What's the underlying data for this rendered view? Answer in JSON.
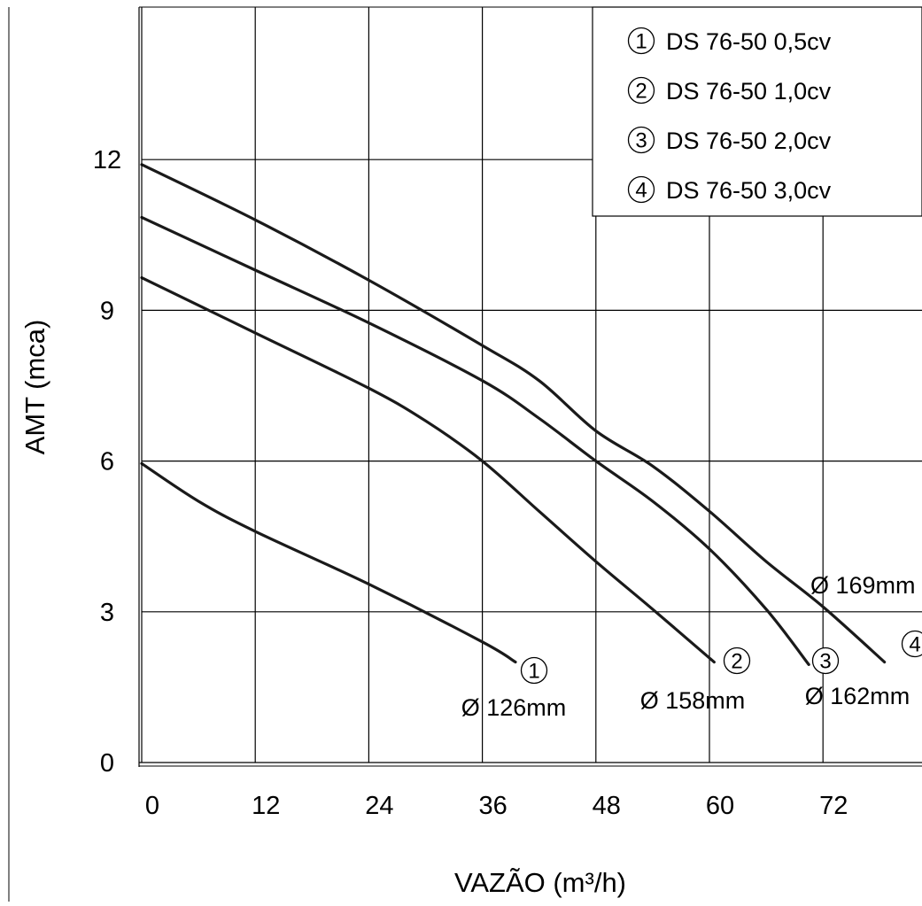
{
  "chart_data": {
    "type": "line",
    "title": "",
    "xlabel": "VAZÃO (m³/h)",
    "ylabel": "AMT (mca)",
    "x_ticks": [
      "0",
      "12",
      "24",
      "36",
      "48",
      "60",
      "72"
    ],
    "y_ticks": [
      "0",
      "3",
      "6",
      "9",
      "12"
    ],
    "xlim": [
      0,
      82
    ],
    "ylim": [
      0,
      15
    ],
    "grid": true,
    "legend_placement": "top-right",
    "legend": [
      {
        "marker": "1",
        "label": "DS 76-50 0,5cv"
      },
      {
        "marker": "2",
        "label": "DS 76-50 1,0cv"
      },
      {
        "marker": "3",
        "label": "DS 76-50 2,0cv"
      },
      {
        "marker": "4",
        "label": "DS 76-50 3,0cv"
      }
    ],
    "series": [
      {
        "name": "DS 76-50 0,5cv",
        "marker": "1",
        "diameter_label": "Ø 126mm",
        "x": [
          0,
          6,
          12,
          24,
          36,
          39.5
        ],
        "y": [
          5.95,
          5.2,
          4.6,
          3.55,
          2.4,
          2.0
        ]
      },
      {
        "name": "DS 76-50 1,0cv",
        "marker": "2",
        "diameter_label": "Ø 158mm",
        "x": [
          0,
          12,
          24,
          30,
          36,
          42,
          48,
          54,
          60.5
        ],
        "y": [
          9.65,
          8.55,
          7.45,
          6.8,
          6.0,
          5.0,
          4.0,
          3.05,
          2.0
        ]
      },
      {
        "name": "DS 76-50 2,0cv",
        "marker": "3",
        "diameter_label": "Ø 162mm",
        "x": [
          0,
          12,
          24,
          36,
          42,
          48,
          54,
          60,
          66,
          70.5
        ],
        "y": [
          10.85,
          9.8,
          8.75,
          7.6,
          6.85,
          6.0,
          5.2,
          4.25,
          3.05,
          1.95
        ]
      },
      {
        "name": "DS 76-50 3,0cv",
        "marker": "4",
        "diameter_label": "Ø 169mm",
        "x": [
          0,
          12,
          24,
          36,
          42,
          48,
          54,
          60,
          66,
          72,
          78.5
        ],
        "y": [
          11.9,
          10.8,
          9.6,
          8.3,
          7.6,
          6.6,
          5.9,
          5.0,
          4.0,
          3.1,
          2.0
        ]
      }
    ]
  }
}
